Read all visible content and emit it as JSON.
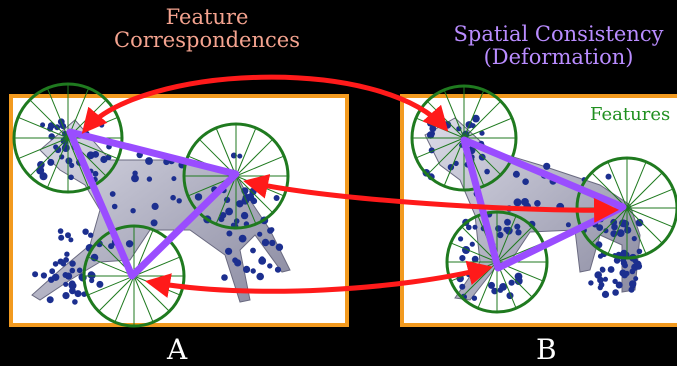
{
  "titles": {
    "correspondences_line1": "Feature",
    "correspondences_line2": "Correspondences",
    "spatial_line1": "Spatial Consistency",
    "spatial_line2": "(Deformation)",
    "features": "Features"
  },
  "panels": {
    "a_label": "A",
    "b_label": "B"
  },
  "colors": {
    "background": "#000000",
    "panel_border": "#f29a1f",
    "arrow": "#ff1a1a",
    "triangle": "#9a4dff",
    "feature_circle": "#1f7a1f",
    "mesh_dots": "#1c2f8f",
    "correspondences_title": "#f4a38f",
    "spatial_title": "#b98cff",
    "features_label": "#1f8f1f"
  }
}
